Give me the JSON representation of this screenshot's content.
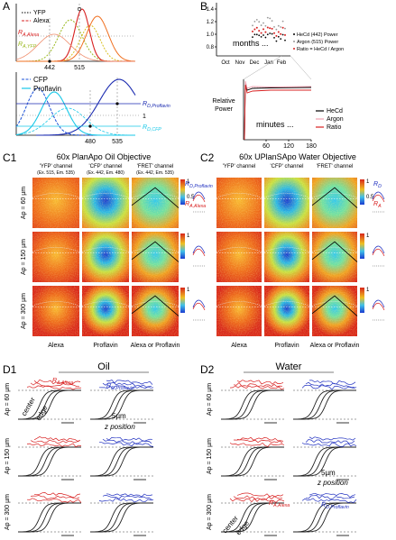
{
  "A": {
    "label": "A",
    "top": {
      "legend": [
        "YFP",
        "Alexa"
      ],
      "ticks": [
        "442",
        "515"
      ],
      "r_alexa": {
        "main": "R",
        "sub": "A,Alexa"
      },
      "r_yfp": {
        "main": "R",
        "sub": "A,YFP"
      }
    },
    "bottom": {
      "legend": [
        "CFP",
        "Proflavin"
      ],
      "ticks": [
        "480",
        "535"
      ],
      "y_tick": "1",
      "r_proflavin": {
        "main": "R",
        "sub": "D,Proflavin"
      },
      "r_cfp": {
        "main": "R",
        "sub": "D,CFP"
      }
    }
  },
  "B": {
    "label": "B",
    "top": {
      "yticks": [
        "1.4",
        "1.2",
        "1.0",
        "0.8"
      ],
      "months": [
        "Oct",
        "Nov",
        "Dec",
        "Jan",
        "Feb"
      ],
      "note": "months ...",
      "legend": [
        "HeCd (442) Power",
        "Argon (515) Power",
        "Ratio = HeCd / Argon"
      ]
    },
    "bottom": {
      "ylabel": [
        "Relative",
        "Power"
      ],
      "xticks": [
        "60",
        "120",
        "180"
      ],
      "note": "minutes ...",
      "legend": [
        "HeCd",
        "Argon",
        "Ratio"
      ]
    }
  },
  "C1": {
    "label": "C1",
    "title": "60x PlanApo Oil Objective",
    "channels": [
      {
        "name": "'YFP' channel",
        "ex": "(Ex. 515, Em. 535)"
      },
      {
        "name": "'CFP' channel",
        "ex": "(Ex. 442, Em. 480)"
      },
      {
        "name": "'FRET' channel",
        "ex": "(Ex. 442, Em. 535)"
      }
    ],
    "rows": [
      "Ap = 60 µm",
      "Ap = 150 µm",
      "Ap = 300 µm"
    ],
    "dyes": [
      "Alexa",
      "Proflavin",
      "Alexa or Proflavin"
    ],
    "colorbar": [
      "1",
      "0.5"
    ],
    "r_d": {
      "main": "R",
      "sub": "D,Proflavin"
    },
    "r_a": {
      "main": "R",
      "sub": "A,Alexa"
    }
  },
  "C2": {
    "label": "C2",
    "title": "60x UPlanSApo Water Objective",
    "channels": [
      {
        "name": "'YFP' channel"
      },
      {
        "name": "'CFP' channel"
      },
      {
        "name": "'FRET' channel"
      }
    ],
    "dyes": [
      "Alexa",
      "Proflavin",
      "Alexa or Proflavin"
    ],
    "colorbar": [
      "1",
      "0.5"
    ],
    "r_d": {
      "main": "R",
      "sub": "D"
    },
    "r_a": {
      "main": "R",
      "sub": "A"
    }
  },
  "D1": {
    "label": "D1",
    "medium": "Oil",
    "rows": [
      "Ap = 60 µm",
      "Ap = 150 µm",
      "Ap = 300 µm"
    ],
    "r_a": {
      "main": "R",
      "sub": "A,Alexa"
    },
    "r_d": {
      "main": "R",
      "sub": "D,Proflavin"
    },
    "center": "center",
    "edge": "edge",
    "scale": "5µm",
    "axis": "z position"
  },
  "D2": {
    "label": "D2",
    "medium": "Water",
    "rows": [
      "Ap = 60 µm",
      "Ap = 150 µm",
      "Ap = 300 µm"
    ],
    "r_a": {
      "main": "R",
      "sub": "A,Alexa"
    },
    "r_d": {
      "main": "R",
      "sub": "D,Proflavin"
    },
    "center": "center",
    "edge": "edge",
    "scale": "5µm",
    "axis": "z position"
  }
}
